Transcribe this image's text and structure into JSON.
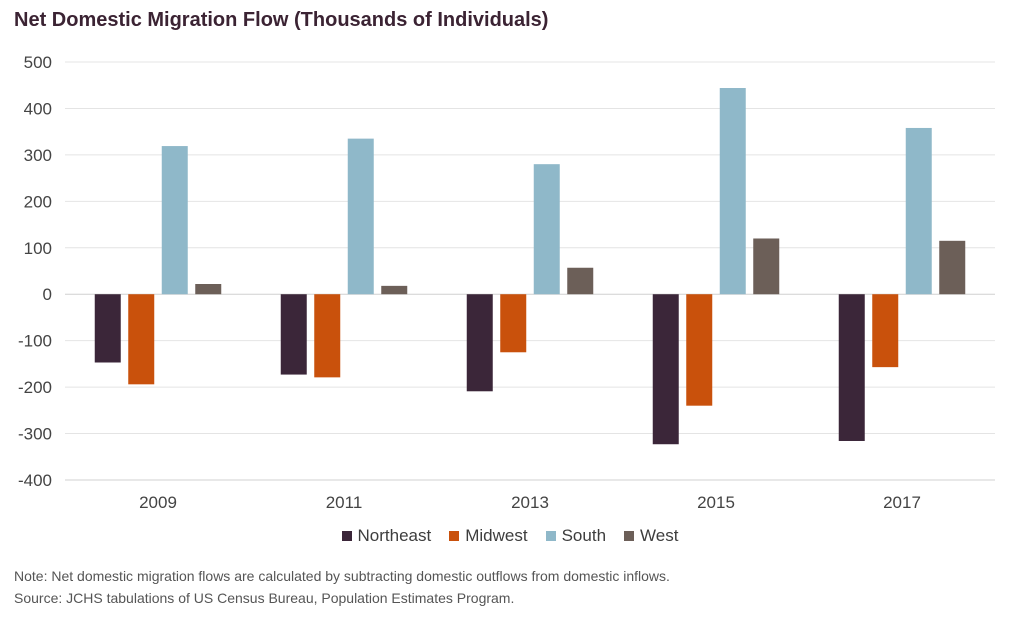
{
  "title": "Net Domestic Migration Flow (Thousands of Individuals)",
  "chart_data": {
    "type": "bar",
    "title": "Net Domestic Migration Flow (Thousands of Individuals)",
    "categories": [
      "2009",
      "2011",
      "2013",
      "2015",
      "2017"
    ],
    "series": [
      {
        "name": "Northeast",
        "color": "#3b2639",
        "values": [
          -147,
          -173,
          -209,
          -323,
          -316
        ]
      },
      {
        "name": "Midwest",
        "color": "#c9510c",
        "values": [
          -194,
          -179,
          -125,
          -240,
          -157
        ]
      },
      {
        "name": "South",
        "color": "#8fb8c9",
        "values": [
          319,
          335,
          280,
          444,
          358
        ]
      },
      {
        "name": "West",
        "color": "#6c5f58",
        "values": [
          22,
          18,
          57,
          120,
          115
        ]
      }
    ],
    "ylim": [
      -400,
      500
    ],
    "yticks": [
      "500",
      "400",
      "300",
      "200",
      "100",
      "0",
      "-100",
      "-200",
      "-300",
      "-400"
    ],
    "grid": true,
    "legend": "bottom"
  },
  "notes": {
    "note": "Note: Net domestic migration flows are calculated by subtracting domestic outflows from domestic inflows.",
    "source": "Source: JCHS tabulations of US Census Bureau, Population Estimates Program."
  }
}
